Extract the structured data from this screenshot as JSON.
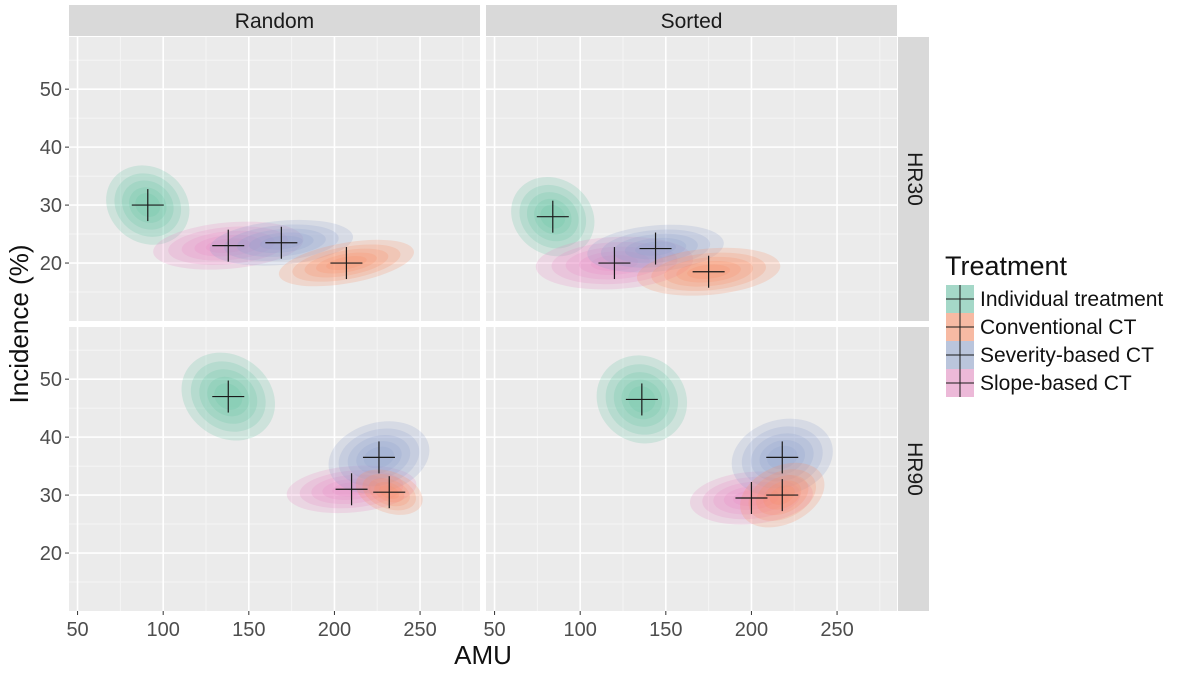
{
  "chart_data": {
    "type": "scatter",
    "subtype": "faceted 2D density contours with mean crosshairs",
    "xlabel": "AMU",
    "ylabel": "Incidence (%)",
    "xlim": [
      45,
      285
    ],
    "ylim": [
      10,
      59
    ],
    "xticks": [
      50,
      100,
      150,
      200,
      250
    ],
    "yticks": [
      20,
      30,
      40,
      50
    ],
    "facet_cols": [
      "Random",
      "Sorted"
    ],
    "facet_rows": [
      "HR30",
      "HR90"
    ],
    "legend": {
      "title": "Treatment",
      "placement": "right",
      "entries": [
        {
          "name": "Individual treatment",
          "color": "#66C2A5"
        },
        {
          "name": "Conventional CT",
          "color": "#FC8D62"
        },
        {
          "name": "Severity-based CT",
          "color": "#8DA0CB"
        },
        {
          "name": "Slope-based CT",
          "color": "#E78AC3"
        }
      ]
    },
    "panels": [
      {
        "col": "Random",
        "row": "HR30",
        "series": [
          {
            "name": "Individual treatment",
            "mean": [
              91,
              30
            ],
            "spread": [
              22,
              7.5
            ],
            "tilt": 55
          },
          {
            "name": "Slope-based CT",
            "mean": [
              138,
              23
            ],
            "spread": [
              44,
              4
            ],
            "tilt": 5
          },
          {
            "name": "Severity-based CT",
            "mean": [
              169,
              23.5
            ],
            "spread": [
              42,
              3.8
            ],
            "tilt": 5
          },
          {
            "name": "Conventional CT",
            "mean": [
              207,
              20
            ],
            "spread": [
              40,
              3.5
            ],
            "tilt": 10
          }
        ]
      },
      {
        "col": "Sorted",
        "row": "HR30",
        "series": [
          {
            "name": "Individual treatment",
            "mean": [
              84,
              28
            ],
            "spread": [
              22,
              7.5
            ],
            "tilt": 55
          },
          {
            "name": "Slope-based CT",
            "mean": [
              120,
              20
            ],
            "spread": [
              46,
              4.5
            ],
            "tilt": 3
          },
          {
            "name": "Severity-based CT",
            "mean": [
              144,
              22.5
            ],
            "spread": [
              40,
              4
            ],
            "tilt": 5
          },
          {
            "name": "Conventional CT",
            "mean": [
              175,
              18.5
            ],
            "spread": [
              42,
              4
            ],
            "tilt": 5
          }
        ]
      },
      {
        "col": "Random",
        "row": "HR90",
        "series": [
          {
            "name": "Individual treatment",
            "mean": [
              138,
              47
            ],
            "spread": [
              24,
              8.5
            ],
            "tilt": 55
          },
          {
            "name": "Slope-based CT",
            "mean": [
              210,
              31
            ],
            "spread": [
              38,
              4
            ],
            "tilt": 5
          },
          {
            "name": "Severity-based CT",
            "mean": [
              226,
              36.5
            ],
            "spread": [
              30,
              6
            ],
            "tilt": 15
          },
          {
            "name": "Conventional CT",
            "mean": [
              232,
              30.5
            ],
            "spread": [
              12,
              6
            ],
            "tilt": 70
          }
        ]
      },
      {
        "col": "Sorted",
        "row": "HR90",
        "series": [
          {
            "name": "Individual treatment",
            "mean": [
              136,
              46.5
            ],
            "spread": [
              25,
              8
            ],
            "tilt": 55
          },
          {
            "name": "Slope-based CT",
            "mean": [
              200,
              29.5
            ],
            "spread": [
              36,
              4.5
            ],
            "tilt": 5
          },
          {
            "name": "Severity-based CT",
            "mean": [
              218,
              36.5
            ],
            "spread": [
              30,
              6.5
            ],
            "tilt": 15
          },
          {
            "name": "Conventional CT",
            "mean": [
              218,
              30
            ],
            "spread": [
              26,
              5
            ],
            "tilt": 25
          }
        ]
      }
    ]
  }
}
